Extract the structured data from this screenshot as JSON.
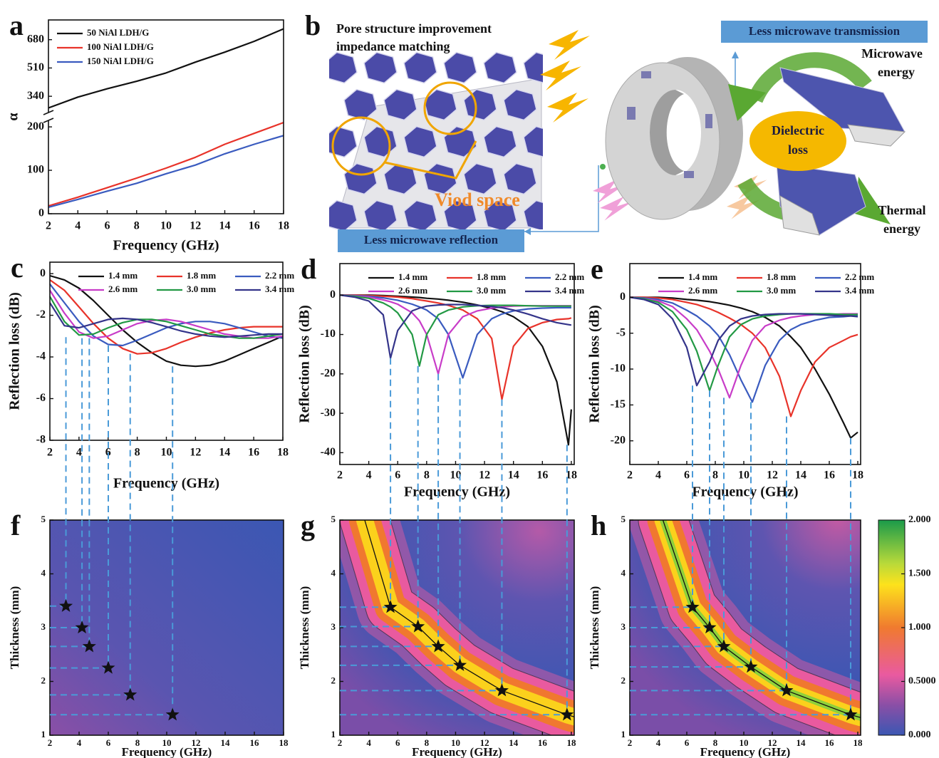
{
  "chart_data": [
    {
      "type": "line",
      "label": "a",
      "x": [
        2,
        4,
        6,
        8,
        10,
        12,
        14,
        16,
        18
      ],
      "xlim": [
        2,
        18
      ],
      "xticks": [
        2,
        4,
        6,
        8,
        10,
        12,
        14,
        16,
        18
      ],
      "ylim": [
        0,
        210
      ],
      "ylim_upper": [
        255,
        760
      ],
      "yticks": [
        0,
        100,
        200,
        340,
        510,
        680
      ],
      "axis_break": true,
      "xlabel": "Frequency (GHz)",
      "ylabel": "α",
      "series": [
        {
          "name": "50 NiAl LDH/G",
          "color": "#111111",
          "values": [
            270,
            335,
            385,
            430,
            480,
            545,
            605,
            670,
            745
          ]
        },
        {
          "name": "100 NiAl LDH/G",
          "color": "#e8332a",
          "values": [
            18,
            38,
            60,
            82,
            105,
            130,
            160,
            185,
            210
          ]
        },
        {
          "name": "150 NiAl LDH/G",
          "color": "#3a5bbf",
          "values": [
            15,
            33,
            52,
            70,
            92,
            112,
            138,
            160,
            180
          ]
        }
      ]
    },
    {
      "type": "line",
      "label": "c",
      "x": [
        2,
        3,
        4,
        5,
        6,
        7,
        8,
        9,
        10,
        11,
        12,
        13,
        14,
        15,
        16,
        17,
        18
      ],
      "xlim": [
        2,
        18
      ],
      "xticks": [
        2,
        4,
        6,
        8,
        10,
        12,
        14,
        16,
        18
      ],
      "ylim": [
        -8,
        0.55
      ],
      "yticks": [
        0,
        -2,
        -4,
        -6,
        -8
      ],
      "xlabel": "Frequency (GHz)",
      "ylabel": "Reflection loss (dB)",
      "series": [
        {
          "name": "1.4 mm",
          "color": "#111111",
          "values": [
            -0.1,
            -0.3,
            -0.7,
            -1.3,
            -2.0,
            -2.7,
            -3.3,
            -3.8,
            -4.2,
            -4.4,
            -4.45,
            -4.4,
            -4.2,
            -3.9,
            -3.6,
            -3.3,
            -3.0
          ]
        },
        {
          "name": "1.8 mm",
          "color": "#e8332a",
          "values": [
            -0.3,
            -0.8,
            -1.6,
            -2.4,
            -3.1,
            -3.6,
            -3.85,
            -3.8,
            -3.6,
            -3.3,
            -3.05,
            -2.85,
            -2.7,
            -2.6,
            -2.55,
            -2.55,
            -2.55
          ]
        },
        {
          "name": "2.2 mm",
          "color": "#3a5bbf",
          "values": [
            -0.5,
            -1.4,
            -2.3,
            -3.0,
            -3.4,
            -3.45,
            -3.2,
            -2.9,
            -2.6,
            -2.4,
            -2.3,
            -2.3,
            -2.4,
            -2.6,
            -2.8,
            -3.0,
            -3.1
          ]
        },
        {
          "name": "2.6 mm",
          "color": "#c83cc8",
          "values": [
            -0.8,
            -1.9,
            -2.8,
            -3.1,
            -3.0,
            -2.7,
            -2.4,
            -2.25,
            -2.2,
            -2.3,
            -2.5,
            -2.7,
            -2.9,
            -3.0,
            -3.1,
            -3.1,
            -3.0
          ]
        },
        {
          "name": "3.0 mm",
          "color": "#229944",
          "values": [
            -1.1,
            -2.3,
            -2.95,
            -2.9,
            -2.6,
            -2.35,
            -2.2,
            -2.2,
            -2.3,
            -2.5,
            -2.7,
            -2.9,
            -3.0,
            -3.1,
            -3.1,
            -3.0,
            -2.9
          ]
        },
        {
          "name": "3.4 mm",
          "color": "#34348a",
          "values": [
            -1.4,
            -2.5,
            -2.6,
            -2.4,
            -2.2,
            -2.15,
            -2.2,
            -2.35,
            -2.55,
            -2.75,
            -2.9,
            -3.0,
            -3.05,
            -3.0,
            -2.95,
            -2.9,
            -2.9
          ]
        }
      ]
    },
    {
      "type": "line",
      "label": "d",
      "x": [
        2,
        3,
        4,
        5,
        5.5,
        6,
        7,
        7.5,
        8,
        8.8,
        9.5,
        10.5,
        11.5,
        12.5,
        13.2,
        14,
        15,
        16,
        17,
        17.8,
        18
      ],
      "xlim": [
        2,
        18.2
      ],
      "xticks": [
        2,
        4,
        6,
        8,
        10,
        12,
        14,
        16,
        18
      ],
      "ylim": [
        -43,
        8
      ],
      "yticks": [
        0,
        -10,
        -20,
        -30,
        -40
      ],
      "xlabel": "Frequency (GHz)",
      "ylabel": "Reflection loss (dB)",
      "series": [
        {
          "name": "1.4 mm",
          "color": "#111111",
          "values": [
            0,
            0,
            0,
            -0.1,
            -0.2,
            -0.3,
            -0.5,
            -0.6,
            -0.8,
            -1,
            -1.3,
            -1.8,
            -2.5,
            -3.4,
            -4.2,
            -5.5,
            -8,
            -13,
            -22,
            -38,
            -29
          ]
        },
        {
          "name": "1.8 mm",
          "color": "#e8332a",
          "values": [
            0,
            0,
            -0.1,
            -0.3,
            -0.4,
            -0.5,
            -0.9,
            -1.2,
            -1.5,
            -2,
            -2.6,
            -3.8,
            -6,
            -11,
            -26.5,
            -13,
            -8.5,
            -7,
            -6.2,
            -6,
            -5.8
          ]
        },
        {
          "name": "2.2 mm",
          "color": "#3a5bbf",
          "values": [
            0,
            -0.1,
            -0.3,
            -0.7,
            -1,
            -1.3,
            -2.3,
            -3,
            -3.8,
            -6,
            -10,
            -21,
            -10,
            -6,
            -4.8,
            -4,
            -3.5,
            -3.3,
            -3.2,
            -3.2,
            -3.2
          ]
        },
        {
          "name": "2.6 mm",
          "color": "#c83cc8",
          "values": [
            0,
            -0.2,
            -0.5,
            -1.2,
            -1.7,
            -2.3,
            -4.5,
            -6.5,
            -10,
            -20,
            -10,
            -5.5,
            -4,
            -3.3,
            -3,
            -2.8,
            -2.7,
            -2.7,
            -2.7,
            -2.7,
            -2.7
          ]
        },
        {
          "name": "3.0 mm",
          "color": "#229944",
          "values": [
            0,
            -0.3,
            -0.8,
            -2,
            -3,
            -4.5,
            -10,
            -18,
            -10,
            -5,
            -3.8,
            -3,
            -2.7,
            -2.6,
            -2.6,
            -2.6,
            -2.7,
            -2.8,
            -2.8,
            -2.8,
            -2.8
          ]
        },
        {
          "name": "3.4 mm",
          "color": "#34348a",
          "values": [
            0,
            -0.5,
            -1.5,
            -5,
            -16,
            -9,
            -4,
            -3.3,
            -2.8,
            -2.5,
            -2.4,
            -2.4,
            -2.6,
            -2.9,
            -3.2,
            -3.8,
            -4.8,
            -6,
            -7,
            -7.5,
            -7.6
          ]
        }
      ]
    },
    {
      "type": "line",
      "label": "e",
      "x": [
        2,
        3,
        4,
        5,
        6,
        6.7,
        7.6,
        8.2,
        9,
        9.8,
        10.6,
        11.5,
        12.5,
        13.3,
        14,
        15,
        16,
        17,
        17.5,
        18
      ],
      "xlim": [
        2,
        18.2
      ],
      "xticks": [
        2,
        4,
        6,
        8,
        10,
        12,
        14,
        16,
        18
      ],
      "ylim": [
        -23.3,
        4.7
      ],
      "yticks": [
        0,
        -5,
        -10,
        -15,
        -20
      ],
      "xlabel": "Frequency (GHz)",
      "ylabel": "Reflection loss (dB)",
      "series": [
        {
          "name": "1.4 mm",
          "color": "#111111",
          "values": [
            0,
            0,
            0,
            -0.1,
            -0.3,
            -0.4,
            -0.6,
            -0.8,
            -1.1,
            -1.5,
            -2,
            -2.8,
            -4,
            -5.5,
            -7,
            -10,
            -13.5,
            -17.5,
            -19.6,
            -18.8
          ]
        },
        {
          "name": "1.8 mm",
          "color": "#e8332a",
          "values": [
            0,
            0,
            -0.1,
            -0.3,
            -0.7,
            -1,
            -1.6,
            -2.1,
            -2.9,
            -3.8,
            -5,
            -7,
            -11,
            -16.6,
            -13,
            -9,
            -7,
            -6,
            -5.5,
            -5.2
          ]
        },
        {
          "name": "2.2 mm",
          "color": "#3a5bbf",
          "values": [
            0,
            -0.1,
            -0.3,
            -0.8,
            -1.8,
            -2.6,
            -4,
            -5.3,
            -8,
            -11.5,
            -14.6,
            -9.5,
            -6,
            -4.5,
            -3.8,
            -3.2,
            -2.8,
            -2.7,
            -2.6,
            -2.6
          ]
        },
        {
          "name": "2.6 mm",
          "color": "#c83cc8",
          "values": [
            0,
            -0.2,
            -0.5,
            -1.3,
            -3,
            -4.5,
            -7.5,
            -10,
            -14,
            -9.5,
            -6,
            -4,
            -3.2,
            -2.8,
            -2.6,
            -2.4,
            -2.4,
            -2.3,
            -2.3,
            -2.3
          ]
        },
        {
          "name": "3.0 mm",
          "color": "#229944",
          "values": [
            0,
            -0.2,
            -0.7,
            -2,
            -4.5,
            -7.5,
            -13,
            -9.5,
            -5.5,
            -3.8,
            -3,
            -2.6,
            -2.4,
            -2.3,
            -2.3,
            -2.3,
            -2.3,
            -2.4,
            -2.4,
            -2.4
          ]
        },
        {
          "name": "3.4 mm",
          "color": "#34348a",
          "values": [
            0,
            -0.3,
            -1,
            -3,
            -7,
            -12.3,
            -9,
            -6,
            -4,
            -3,
            -2.6,
            -2.4,
            -2.3,
            -2.3,
            -2.3,
            -2.4,
            -2.5,
            -2.6,
            -2.6,
            -2.7
          ]
        }
      ]
    },
    {
      "type": "heatmap",
      "label": "f",
      "x": [
        3.1,
        4.2,
        4.7,
        6.0,
        7.5,
        10.4
      ],
      "values": [
        3.4,
        3.0,
        2.65,
        2.25,
        1.75,
        1.38
      ],
      "xlim": [
        2,
        18
      ],
      "xticks": [
        2,
        4,
        6,
        8,
        10,
        12,
        14,
        16,
        18
      ],
      "ylim": [
        1,
        5
      ],
      "yticks": [
        1,
        2,
        3,
        4,
        5
      ],
      "xlabel": "Frequency (GHz)",
      "ylabel": "Thickness (mm)"
    },
    {
      "type": "heatmap",
      "label": "g",
      "x": [
        5.5,
        7.4,
        8.8,
        10.3,
        13.2,
        17.7
      ],
      "values": [
        3.38,
        3.02,
        2.65,
        2.3,
        1.83,
        1.38
      ],
      "xlim": [
        2,
        18.2
      ],
      "xticks": [
        2,
        4,
        6,
        8,
        10,
        12,
        14,
        16,
        18
      ],
      "ylim": [
        1,
        5
      ],
      "yticks": [
        1,
        2,
        3,
        4,
        5
      ],
      "xlabel": "Frequency (GHz)",
      "ylabel": "Thickness (mm)",
      "ridge_colors": [
        "#e95a9f",
        "#f0782f",
        "#fbd11c"
      ]
    },
    {
      "type": "heatmap",
      "label": "h",
      "x": [
        6.4,
        7.6,
        8.6,
        10.5,
        13.0,
        17.5
      ],
      "values": [
        3.38,
        3.0,
        2.65,
        2.27,
        1.83,
        1.38
      ],
      "xlim": [
        2,
        18.2
      ],
      "xticks": [
        2,
        4,
        6,
        8,
        10,
        12,
        14,
        16,
        18
      ],
      "ylim": [
        1,
        5
      ],
      "yticks": [
        1,
        2,
        3,
        4,
        5
      ],
      "xlabel": "Frequency (GHz)",
      "ylabel": "Thickness (mm)",
      "ridge_colors": [
        "#e95a9f",
        "#f0782f",
        "#fbd11c",
        "#8fd13a"
      ],
      "colorbar_lim": [
        0,
        2
      ],
      "colorbar_ticks": [
        {
          "value": 2,
          "label": "2.000"
        },
        {
          "value": 1.5,
          "label": "1.500"
        },
        {
          "value": 1,
          "label": "1.000"
        },
        {
          "value": 0.5,
          "label": "0.5000"
        },
        {
          "value": 0,
          "label": "0.000"
        }
      ]
    }
  ],
  "diagram": {
    "label": "b",
    "title_lines": [
      "Pore structure improvement",
      "impedance matching"
    ],
    "void_label": "Viod space",
    "reflection": "Less microwave reflection",
    "transmission": "Less microwave transmission",
    "microwave": [
      "Microwave",
      "energy"
    ],
    "center": [
      "Dielectric",
      "loss"
    ],
    "thermal": [
      "Thermal",
      "energy"
    ]
  }
}
